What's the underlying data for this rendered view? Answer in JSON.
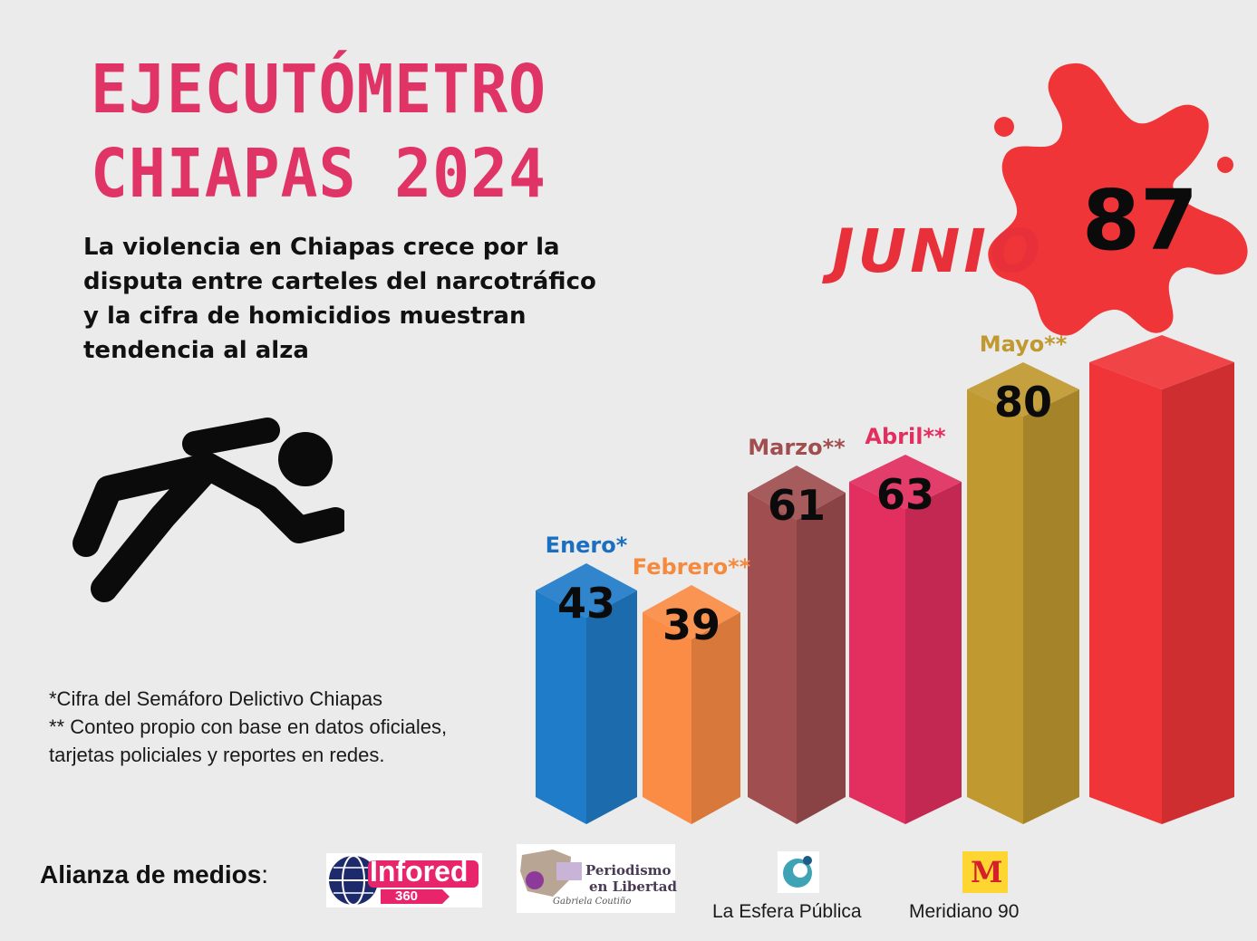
{
  "title": {
    "line1": "EJECUTÓMETRO",
    "line2": "CHIAPAS 2024"
  },
  "subtitle": {
    "lines": [
      "La violencia en Chiapas crece por la",
      "disputa entre carteles del narcotráfico",
      "y la cifra de homicidios muestran",
      "tendencia al alza"
    ]
  },
  "notes": {
    "line1": "*Cifra del Semáforo Delictivo Chiapas",
    "line2": "** Conteo propio con base en datos oficiales,",
    "line3": "tarjetas policiales y reportes en redes."
  },
  "chart_data": {
    "type": "bar",
    "title": "EJECUTÓMETRO CHIAPAS 2024",
    "categories": [
      "Enero*",
      "Febrero**",
      "Marzo**",
      "Abril**",
      "Mayo**",
      "JUNIO"
    ],
    "values": [
      43,
      39,
      61,
      63,
      80,
      87
    ],
    "colors": [
      "#1f7cc9",
      "#fb8c45",
      "#a04e50",
      "#e22f5f",
      "#c09930",
      "#f03538"
    ],
    "label_colors": [
      "#1a6fc0",
      "#f58a3e",
      "#a04e50",
      "#e22f5f",
      "#c09930",
      "#e8303a"
    ],
    "highlight": {
      "category": "JUNIO",
      "value": 87
    }
  },
  "footer": {
    "label": "Alianza de medios",
    "media": [
      {
        "name": "Infored",
        "sub": "360"
      },
      {
        "name": "Periodismo",
        "name2": "en Libertad",
        "sig": "Gabriela Coutiño"
      },
      {
        "name": "La Esfera Pública"
      },
      {
        "name": "Meridiano 90",
        "mark": "M"
      }
    ]
  }
}
